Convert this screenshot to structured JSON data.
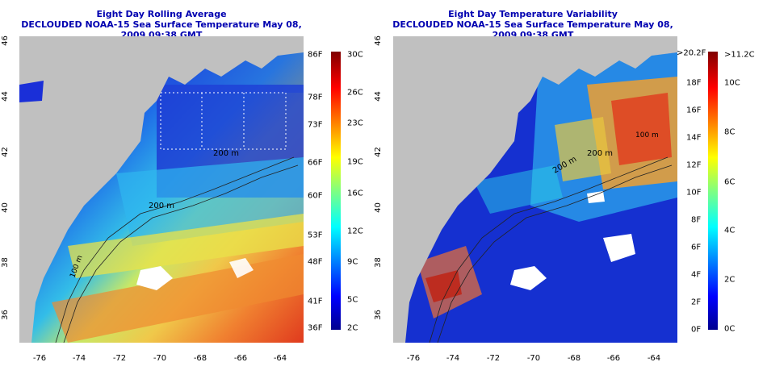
{
  "left": {
    "title": "Eight Day Rolling Average",
    "subtitle": "DECLOUDED NOAA-15 Sea Surface Temperature May 08, 2009 09:38 GMT",
    "colorbar_f": [
      "86F",
      "78F",
      "73F",
      "66F",
      "60F",
      "53F",
      "48F",
      "41F",
      "36F"
    ],
    "colorbar_c": [
      "30C",
      "26C",
      "23C",
      "19C",
      "16C",
      "12C",
      "9C",
      "5C",
      "2C"
    ]
  },
  "right": {
    "title": "Eight Day Temperature Variability",
    "subtitle": "DECLOUDED NOAA-15 Sea Surface Temperature May 08, 2009 09:38 GMT",
    "colorbar_f": [
      ">20.2F",
      "18F",
      "16F",
      "14F",
      "12F",
      "10F",
      "8F",
      "6F",
      "4F",
      "2F",
      "0F"
    ],
    "colorbar_c": [
      ">11.2C",
      "10C",
      "8C",
      "6C",
      "4C",
      "2C",
      "0C"
    ]
  },
  "axes": {
    "x_ticks": [
      "-76",
      "-74",
      "-72",
      "-70",
      "-68",
      "-66",
      "-64"
    ],
    "y_ticks": [
      "36",
      "38",
      "40",
      "42",
      "44",
      "46"
    ]
  },
  "contour_labels": [
    "100 m",
    "200 m",
    "200 m",
    "100 m"
  ],
  "colors": {
    "land": "#c0c0c0",
    "cloud": "#ffffff",
    "title": "#0000b0"
  }
}
